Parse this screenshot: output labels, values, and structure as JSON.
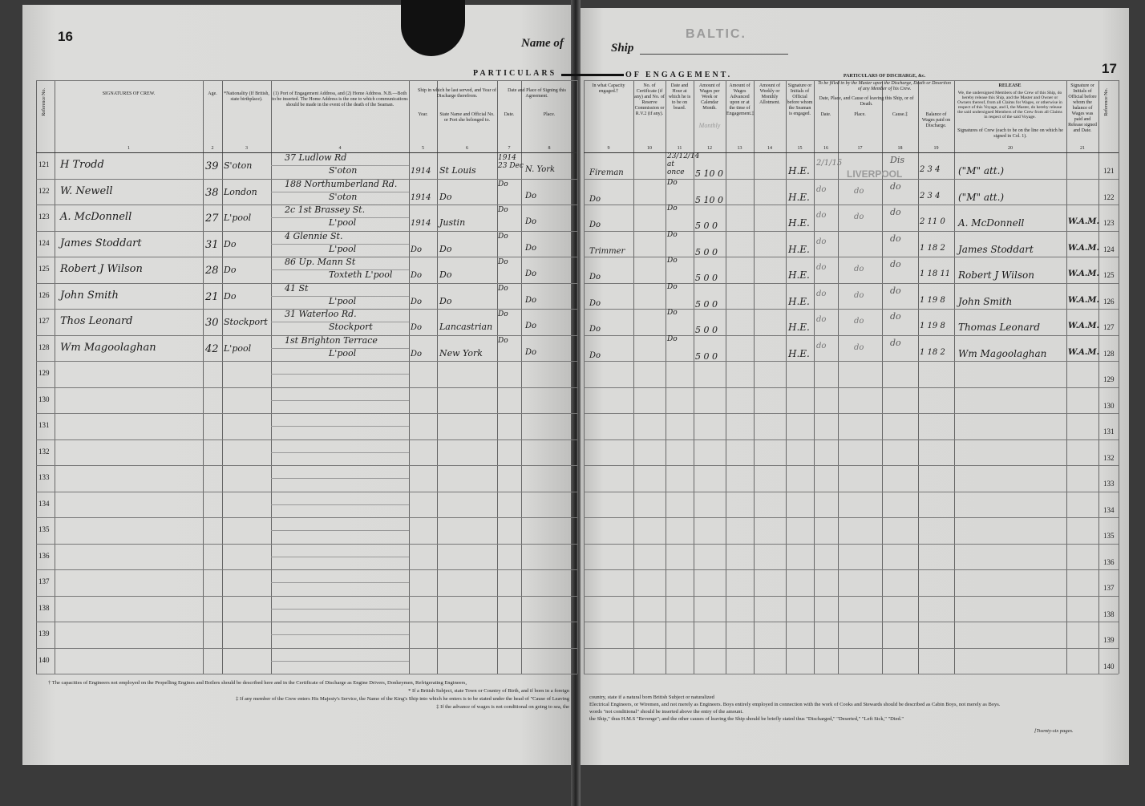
{
  "left_page": {
    "page_number": "16",
    "name_of": "Name of",
    "title_part": "PARTICULARS",
    "headers": [
      {
        "col": "Reference No.",
        "num": ""
      },
      {
        "col": "SIGNATURES OF CREW.",
        "num": "1"
      },
      {
        "col": "Age.",
        "num": "2"
      },
      {
        "col": "*Nationality (If British, state birthplace).",
        "num": "3"
      },
      {
        "col": "(1) Port of Engagement Address, and (2) Home Address. N.B.—Both to be inserted. The Home Address is the one to which communications should be made in the event of the death of the Seaman.",
        "num": "4"
      },
      {
        "col": "Year.",
        "num": "5"
      },
      {
        "col": "State Name and Official No. or Port she belonged to.",
        "num": "6"
      },
      {
        "col": "Date.",
        "num": "7"
      },
      {
        "col": "Place.",
        "num": "8"
      }
    ],
    "group_headers": {
      "last_ship": "Ship in which he last served, and Year of Discharge therefrom.",
      "signing": "Date and Place of Signing this Agreement."
    },
    "footnotes": [
      "† The capacities of Engineers not employed on the Propelling Engines and Boilers should be described here and in the Certificate of Discharge as Engine Drivers, Donkeymen, Refrigerating Engineers,",
      "* If a British Subject, state Town or Country of Birth, and if born in a foreign",
      "‡ If any member of the Crew enters His Majesty's Service, the Name of the King's Ship into which he enters is to be stated under the head of \"Cause of Leaving",
      "‡ If the advance of wages is not conditional on going to sea, the"
    ]
  },
  "right_page": {
    "page_number": "17",
    "ship_label": "Ship",
    "ship_name": "BALTIC.",
    "title_part": "OF ENGAGEMENT.",
    "headers": [
      {
        "col": "In what Capacity engaged.†",
        "num": "9"
      },
      {
        "col": "No. of Certificate (if any) and No. of Reserve Commission or R.V.2 (if any).",
        "num": "10"
      },
      {
        "col": "Date and Hour at which he is to be on board.",
        "num": "11"
      },
      {
        "col": "Amount of Wages per Week or Calendar Month.",
        "num": "12",
        "stamp": "Monthly"
      },
      {
        "col": "Amount of Wages Advanced upon or at the time of Engagement.‡",
        "num": "13"
      },
      {
        "col": "Amount of Weekly or Monthly Allotment.",
        "num": "14"
      },
      {
        "col": "Signature or Initials of Official before whom the Seaman is engaged.",
        "num": "15"
      },
      {
        "col": "Date.",
        "num": "16"
      },
      {
        "col": "Place.",
        "num": "17"
      },
      {
        "col": "Cause.‡",
        "num": "18"
      },
      {
        "col": "Balance of Wages paid on Discharge.",
        "num": "19"
      },
      {
        "col": "Signatures of Crew (each to be on the line on which he signed in Col. 1).",
        "num": "20"
      },
      {
        "col": "Signature or Initials of Official before whom the balance of Wages was paid and Release signed and Date.",
        "num": "21"
      },
      {
        "col": "Reference No.",
        "num": ""
      }
    ],
    "discharge_header": "PARTICULARS OF DISCHARGE, &c.",
    "discharge_sub": "To be filled in by the Master upon the Discharge, Death or Desertion of any Member of his Crew.",
    "discharge_group": "Date, Place, and Cause of leaving this Ship, or of Death.",
    "release_header": "RELEASE",
    "release_text": "We, the undersigned Members of the Crew of this Ship, do hereby release this Ship, and the Master and Owner or Owners thereof, from all Claims for Wages, or otherwise in respect of this Voyage, and I, the Master, do hereby release the said undersigned Members of the Crew from all Claims in respect of the said Voyage.",
    "discharge_stamp": "LIVERPOOL",
    "footnotes": [
      "country, state if a natural born British Subject or naturalized",
      "Electrical Engineers, or Wiremen, and not merely as Engineers.   Boys entirely employed in connection with the work of Cooks and Stewards should be described as Cabin Boys, not merely as Boys.",
      "words \"not conditional\" should be inserted above the entry of the amount.",
      "the Ship,\" thus H.M.S \"Revenge\"; and the other causes of leaving the Ship should be briefly stated thus \"Discharged,\" \"Deserted,\" \"Left Sick,\" \"Died.\"",
      "[Twenty-six pages."
    ]
  },
  "rows": [
    {
      "ref": "121",
      "sig": "H Trodd",
      "age": "39",
      "nat": "S'oton",
      "addr1": "37 Ludlow Rd",
      "addr2": "S'oton",
      "year": "1914",
      "ship": "St Louis",
      "date": "1914 23 Dec",
      "place": "N. York",
      "capacity": "Fireman",
      "cert": "",
      "onboard": "23/12/14 at once",
      "wages": "5 10 0",
      "official": "H.E.",
      "dis_date": "2/1/15",
      "dis_place": "",
      "cause": "Dis",
      "balance": "2 3 4",
      "release_sig": "(\"M\" att.)",
      "rel_official": ""
    },
    {
      "ref": "122",
      "sig": "W. Newell",
      "age": "38",
      "nat": "London",
      "addr1": "188 Northumberland Rd.",
      "addr2": "S'oton",
      "year": "1914",
      "ship": "Do",
      "date": "Do",
      "place": "Do",
      "capacity": "Do",
      "cert": "",
      "onboard": "Do",
      "wages": "5 10 0",
      "official": "H.E.",
      "dis_date": "do",
      "dis_place": "do",
      "cause": "do",
      "balance": "2 3 4",
      "release_sig": "(\"M\" att.)",
      "rel_official": ""
    },
    {
      "ref": "123",
      "sig": "A. McDonnell",
      "age": "27",
      "nat": "L'pool",
      "addr1": "2c 1st Brassey St.",
      "addr2": "L'pool",
      "year": "1914",
      "ship": "Justin",
      "date": "Do",
      "place": "Do",
      "capacity": "Do",
      "cert": "",
      "onboard": "Do",
      "wages": "5 0 0",
      "official": "H.E.",
      "dis_date": "do",
      "dis_place": "do",
      "cause": "do",
      "balance": "2 11 0",
      "release_sig": "A. McDonnell",
      "rel_official": "W.A.M."
    },
    {
      "ref": "124",
      "sig": "James Stoddart",
      "age": "31",
      "nat": "Do",
      "addr1": "4 Glennie St.",
      "addr2": "L'pool",
      "year": "Do",
      "ship": "Do",
      "date": "Do",
      "place": "Do",
      "capacity": "Trimmer",
      "cert": "",
      "onboard": "Do",
      "wages": "5 0 0",
      "official": "H.E.",
      "dis_date": "do",
      "dis_place": "",
      "cause": "do",
      "balance": "1 18 2",
      "release_sig": "James Stoddart",
      "rel_official": "W.A.M."
    },
    {
      "ref": "125",
      "sig": "Robert J Wilson",
      "age": "28",
      "nat": "Do",
      "addr1": "86 Up. Mann St",
      "addr2": "Toxteth L'pool",
      "year": "Do",
      "ship": "Do",
      "date": "Do",
      "place": "Do",
      "capacity": "Do",
      "cert": "",
      "onboard": "Do",
      "wages": "5 0 0",
      "official": "H.E.",
      "dis_date": "do",
      "dis_place": "do",
      "cause": "do",
      "balance": "1 18 11",
      "release_sig": "Robert J Wilson",
      "rel_official": "W.A.M."
    },
    {
      "ref": "126",
      "sig": "John Smith",
      "age": "21",
      "nat": "Do",
      "addr1": "41 St",
      "addr2": "L'pool",
      "year": "Do",
      "ship": "Do",
      "date": "Do",
      "place": "Do",
      "capacity": "Do",
      "cert": "",
      "onboard": "Do",
      "wages": "5 0 0",
      "official": "H.E.",
      "dis_date": "do",
      "dis_place": "do",
      "cause": "do",
      "balance": "1 19 8",
      "release_sig": "John Smith",
      "rel_official": "W.A.M."
    },
    {
      "ref": "127",
      "sig": "Thos Leonard",
      "age": "30",
      "nat": "Stockport",
      "addr1": "31 Waterloo Rd.",
      "addr2": "Stockport",
      "year": "Do",
      "ship": "Lancastrian",
      "date": "Do",
      "place": "Do",
      "capacity": "Do",
      "cert": "",
      "onboard": "Do",
      "wages": "5 0 0",
      "official": "H.E.",
      "dis_date": "do",
      "dis_place": "do",
      "cause": "do",
      "balance": "1 19 8",
      "release_sig": "Thomas Leonard",
      "rel_official": "W.A.M."
    },
    {
      "ref": "128",
      "sig": "Wm Magoolaghan",
      "age": "42",
      "nat": "L'pool",
      "addr1": "1st Brighton Terrace",
      "addr2": "L'pool",
      "year": "Do",
      "ship": "New York",
      "date": "Do",
      "place": "Do",
      "capacity": "Do",
      "cert": "",
      "onboard": "Do",
      "wages": "5 0 0",
      "official": "H.E.",
      "dis_date": "do",
      "dis_place": "do",
      "cause": "do",
      "balance": "1 18 2",
      "release_sig": "Wm Magoolaghan",
      "rel_official": "W.A.M."
    },
    {
      "ref": "129"
    },
    {
      "ref": "130"
    },
    {
      "ref": "131"
    },
    {
      "ref": "132"
    },
    {
      "ref": "133"
    },
    {
      "ref": "134"
    },
    {
      "ref": "135"
    },
    {
      "ref": "136"
    },
    {
      "ref": "137"
    },
    {
      "ref": "138"
    },
    {
      "ref": "139"
    },
    {
      "ref": "140"
    }
  ]
}
